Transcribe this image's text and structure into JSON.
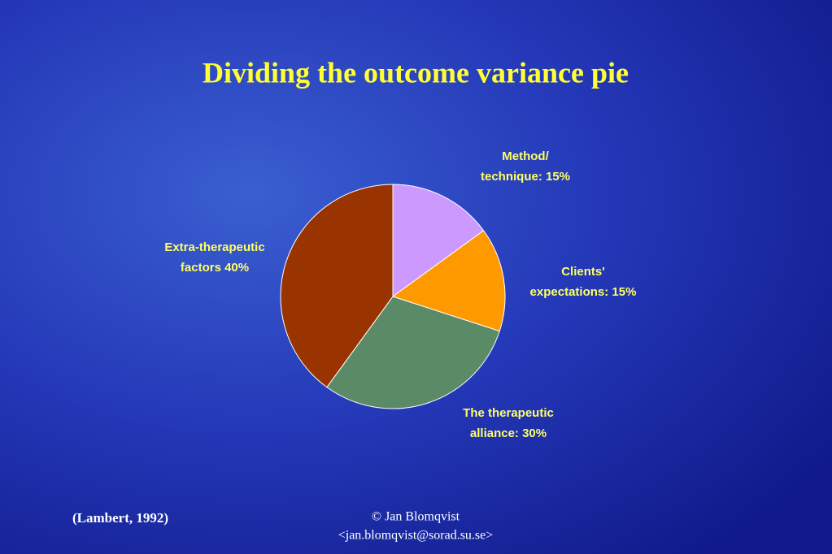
{
  "chart_data": {
    "type": "pie",
    "title": "Dividing the outcome variance pie",
    "categories": [
      [
        "Method/",
        "technique: 15%"
      ],
      [
        "Clients'",
        "expectations: 15%"
      ],
      [
        "The therapeutic",
        "alliance: 30%"
      ],
      [
        "Extra-therapeutic",
        "factors 40%"
      ]
    ],
    "values": [
      15,
      15,
      30,
      40
    ],
    "colors": [
      "#cc99ff",
      "#ff9900",
      "#5b8a67",
      "#993300"
    ],
    "source": "(Lambert, 1992)",
    "footer": [
      "© Jan Blomqvist",
      "<jan.blomqvist@sorad.su.se>"
    ]
  }
}
